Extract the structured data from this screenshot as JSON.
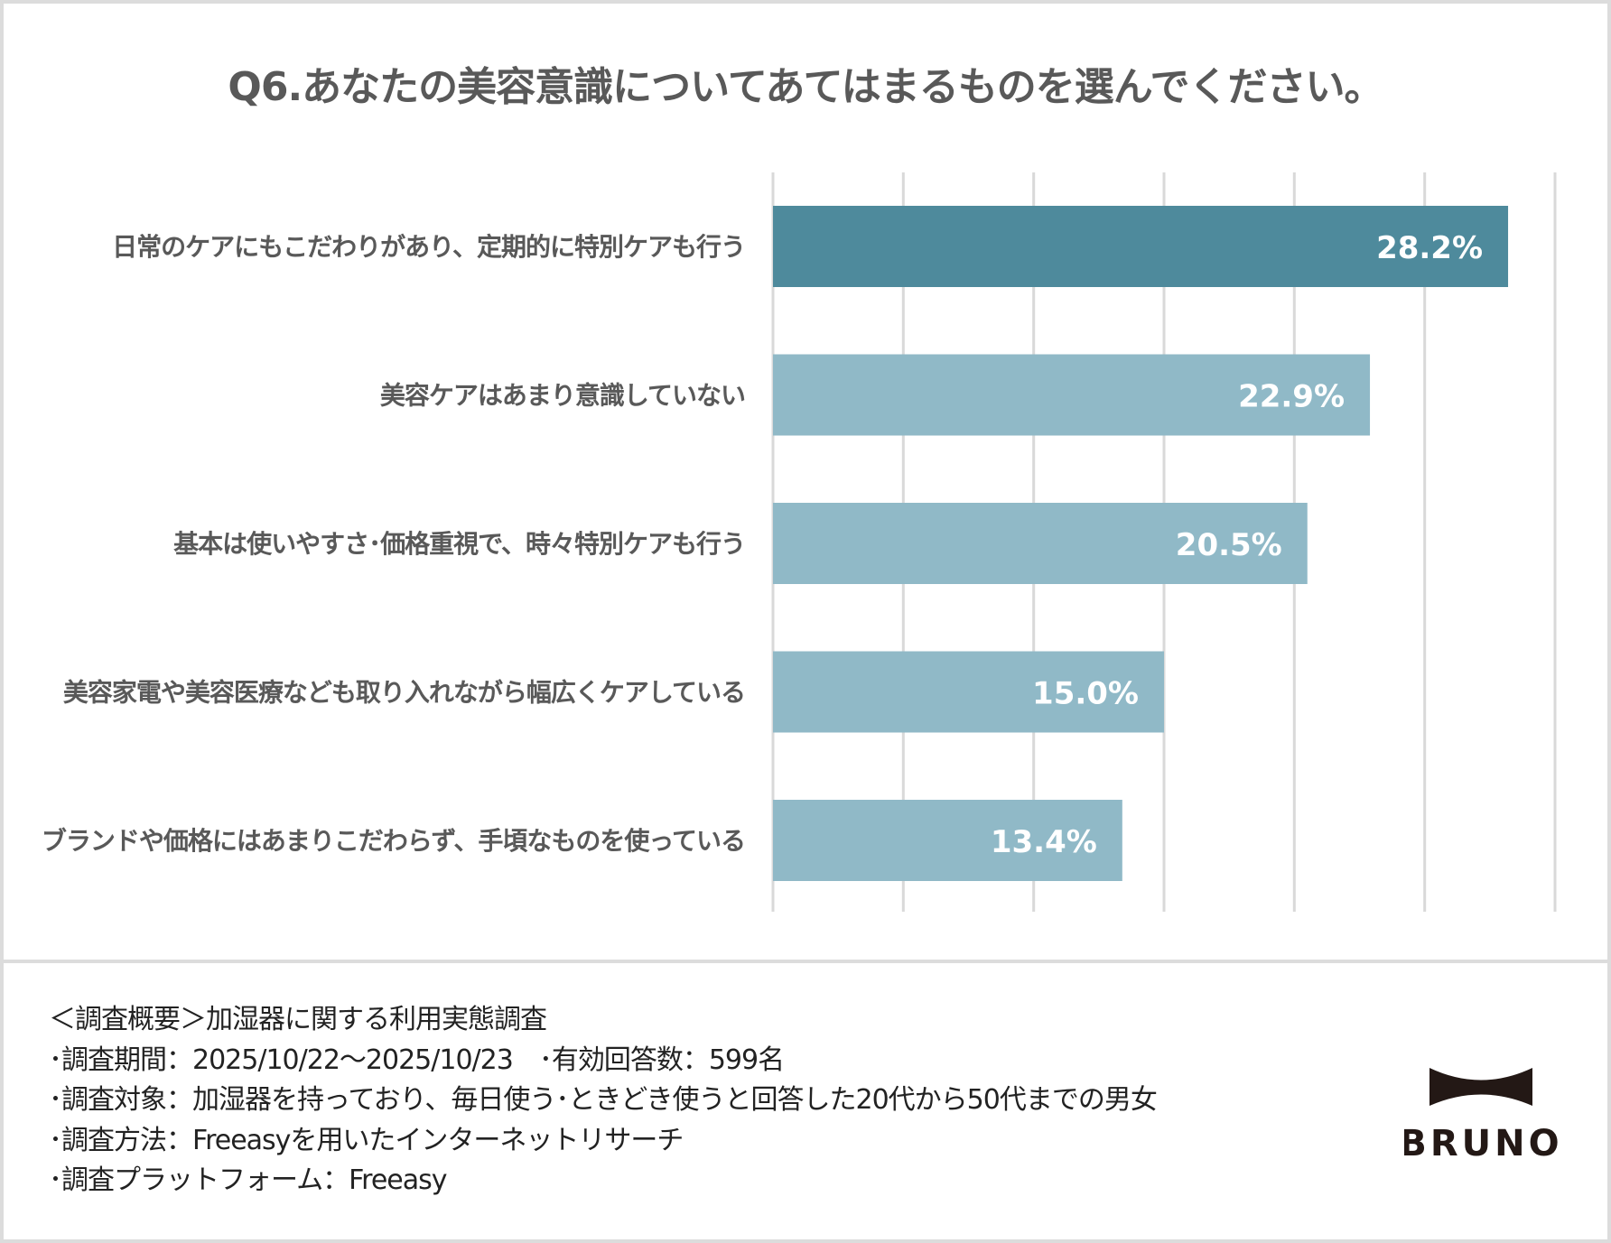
{
  "title": "Q6.あなたの美容意識についてあてはまるものを選んでください。",
  "chart_data": {
    "type": "bar",
    "orientation": "horizontal",
    "title": "Q6.あなたの美容意識についてあてはまるものを選んでください。",
    "categories": [
      "日常のケアにもこだわりがあり、定期的に特別ケアも行う",
      "美容ケアはあまり意識していない",
      "基本は使いやすさ･価格重視で、時々特別ケアも行う",
      "美容家電や美容医療なども取り入れながら幅広くケアしている",
      "ブランドや価格にはあまりこだわらず、手頃なものを使っている"
    ],
    "values": [
      28.2,
      22.9,
      20.5,
      15.0,
      13.4
    ],
    "data_labels": [
      "28.2%",
      "22.9%",
      "20.5%",
      "15.0%",
      "13.4%"
    ],
    "xlim": [
      0,
      30
    ],
    "grid_step": 5,
    "grid": true,
    "colors": {
      "highlight": "#4e8a9c",
      "default": "#90b9c7",
      "grid": "#d9d9d9"
    }
  },
  "notes": [
    "＜調査概要＞加湿器に関する利用実態調査",
    "･調査期間：2025/10/22～2025/10/23　･有効回答数：599名",
    "･調査対象：加湿器を持っており、毎日使う･ときどき使うと回答した20代から50代までの男女",
    "･調査方法：Freeasyを用いたインターネットリサーチ",
    "･調査プラットフォーム：Freeasy"
  ],
  "logo": {
    "text": "BRUNO",
    "color": "#231815"
  }
}
